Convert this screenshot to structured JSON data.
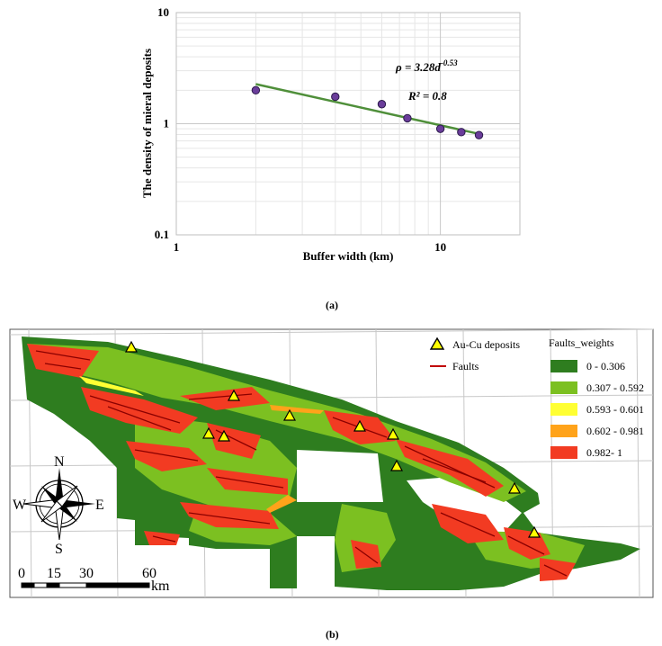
{
  "chart_data": {
    "type": "scatter",
    "x": [
      2,
      4,
      6,
      7.5,
      10,
      12,
      14
    ],
    "y": [
      2.0,
      1.75,
      1.5,
      1.12,
      0.9,
      0.84,
      0.79
    ],
    "trendline": {
      "coef": 3.28,
      "exponent": -0.53
    },
    "equation": "ρ = 3.28d",
    "equation_exp": "-0.53",
    "r2": "R² = 0.8",
    "xlabel": "Buffer width (km)",
    "ylabel": "The density of mieral deposits",
    "xscale": "log",
    "yscale": "log",
    "xlim": [
      1,
      20
    ],
    "ylim": [
      0.1,
      10
    ],
    "xticks": [
      "1",
      "10"
    ],
    "yticks": [
      "10",
      "1",
      "0.1"
    ],
    "grid": true,
    "colors": {
      "marker": "#6a3d9a",
      "trend": "#4f8f3a",
      "grid": "#d9d9d9"
    }
  },
  "caption_a": "(a)",
  "caption_b": "(b)",
  "map": {
    "legend_symbols": [
      {
        "label": "Au-Cu deposits",
        "icon": "triangle-icon"
      },
      {
        "label": "Faults",
        "icon": "line-icon"
      }
    ],
    "weights_title": "Faults_weights",
    "weights": [
      {
        "label": "0 - 0.306",
        "color": "#2e7d1f"
      },
      {
        "label": "0.307 - 0.592",
        "color": "#7cc021"
      },
      {
        "label": "0.593 - 0.601",
        "color": "#ffff33"
      },
      {
        "label": "0.602 - 0.981",
        "color": "#ffa31a"
      },
      {
        "label": "0.982- 1",
        "color": "#f23b22"
      }
    ],
    "compass": {
      "n": "N",
      "s": "S",
      "e": "E",
      "w": "W"
    },
    "scale": {
      "labels": [
        "0",
        "15",
        "30",
        "60"
      ],
      "unit": "km"
    }
  }
}
